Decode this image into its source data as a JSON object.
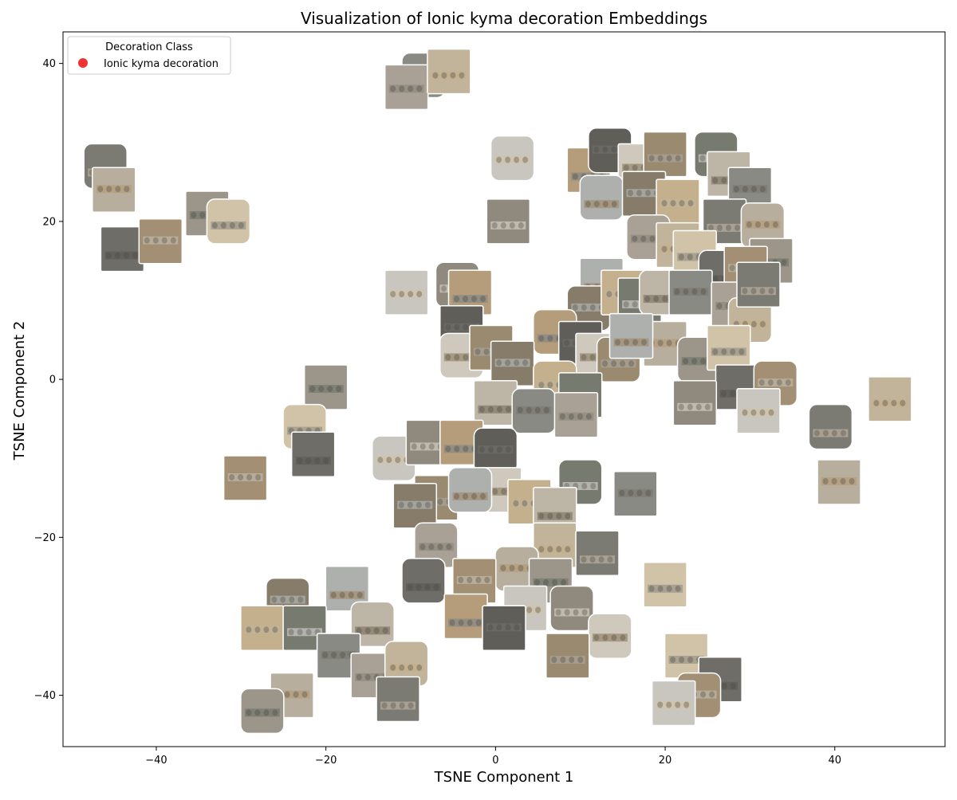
{
  "chart_data": {
    "type": "scatter",
    "title": "Visualization of Ionic kyma decoration Embeddings",
    "xlabel": "TSNE Component 1",
    "ylabel": "TSNE Component 2",
    "xlim": [
      -51,
      53
    ],
    "ylim": [
      -46.5,
      44
    ],
    "xticks": [
      -40,
      -20,
      0,
      20,
      40
    ],
    "yticks": [
      -40,
      -20,
      0,
      20,
      40
    ],
    "grid": false,
    "legend": {
      "title": "Decoration Class",
      "placement": "top-left",
      "entries": [
        {
          "label": "Ionic kyma decoration",
          "color": "#ee3333"
        }
      ]
    },
    "marker_style": "image-thumbnail",
    "series": [
      {
        "name": "Ionic kyma decoration",
        "color": "#ee3333",
        "points": [
          {
            "x": -8.5,
            "y": 38.5
          },
          {
            "x": -10.5,
            "y": 37.0
          },
          {
            "x": -5.5,
            "y": 39.0
          },
          {
            "x": -46,
            "y": 27
          },
          {
            "x": -45,
            "y": 24
          },
          {
            "x": -34,
            "y": 21
          },
          {
            "x": -31.5,
            "y": 20
          },
          {
            "x": -44,
            "y": 16.5
          },
          {
            "x": -39.5,
            "y": 17.5
          },
          {
            "x": 2,
            "y": 28
          },
          {
            "x": 1.5,
            "y": 20
          },
          {
            "x": 11,
            "y": 26.5
          },
          {
            "x": 13.5,
            "y": 29
          },
          {
            "x": 17,
            "y": 27
          },
          {
            "x": 20,
            "y": 28.5
          },
          {
            "x": 12.5,
            "y": 23
          },
          {
            "x": 17.5,
            "y": 23.5
          },
          {
            "x": 21.5,
            "y": 22.5
          },
          {
            "x": 26,
            "y": 28.5
          },
          {
            "x": 27.5,
            "y": 26
          },
          {
            "x": 30,
            "y": 24
          },
          {
            "x": 18,
            "y": 18
          },
          {
            "x": 21.5,
            "y": 17
          },
          {
            "x": 27,
            "y": 20
          },
          {
            "x": 31.5,
            "y": 19.5
          },
          {
            "x": 32.5,
            "y": 15
          },
          {
            "x": 23.5,
            "y": 16
          },
          {
            "x": 26.5,
            "y": 13.5
          },
          {
            "x": 29.5,
            "y": 14
          },
          {
            "x": -10.5,
            "y": 11
          },
          {
            "x": -4.5,
            "y": 12
          },
          {
            "x": -3,
            "y": 11
          },
          {
            "x": -4,
            "y": 6.5
          },
          {
            "x": -4,
            "y": 3
          },
          {
            "x": -0.5,
            "y": 4
          },
          {
            "x": 12.5,
            "y": 12.5
          },
          {
            "x": 11,
            "y": 9
          },
          {
            "x": 15,
            "y": 11
          },
          {
            "x": 17,
            "y": 10
          },
          {
            "x": 19.5,
            "y": 11
          },
          {
            "x": 23,
            "y": 11
          },
          {
            "x": 28,
            "y": 9.5
          },
          {
            "x": 30,
            "y": 7.5
          },
          {
            "x": 31,
            "y": 12
          },
          {
            "x": 20,
            "y": 4.5
          },
          {
            "x": 24,
            "y": 2.5
          },
          {
            "x": 27.5,
            "y": 4
          },
          {
            "x": 28.5,
            "y": -1
          },
          {
            "x": 33,
            "y": -0.5
          },
          {
            "x": 31,
            "y": -4
          },
          {
            "x": 23.5,
            "y": -3
          },
          {
            "x": 7,
            "y": 6
          },
          {
            "x": 10,
            "y": 4.5
          },
          {
            "x": 12,
            "y": 3
          },
          {
            "x": 14.5,
            "y": 2.5
          },
          {
            "x": 16,
            "y": 5.5
          },
          {
            "x": 2,
            "y": 2
          },
          {
            "x": 7,
            "y": -0.5
          },
          {
            "x": 10,
            "y": -2
          },
          {
            "x": 0,
            "y": -3
          },
          {
            "x": 4.5,
            "y": -4
          },
          {
            "x": 9.5,
            "y": -4.5
          },
          {
            "x": 46.5,
            "y": -2.5
          },
          {
            "x": 39.5,
            "y": -6
          },
          {
            "x": 40.5,
            "y": -13
          },
          {
            "x": -20,
            "y": -1
          },
          {
            "x": -22.5,
            "y": -6
          },
          {
            "x": -21.5,
            "y": -9.5
          },
          {
            "x": -29.5,
            "y": -12.5
          },
          {
            "x": -12,
            "y": -10
          },
          {
            "x": -8,
            "y": -8
          },
          {
            "x": -4,
            "y": -8
          },
          {
            "x": 0,
            "y": -9
          },
          {
            "x": 0.5,
            "y": -14
          },
          {
            "x": -7,
            "y": -15
          },
          {
            "x": -3,
            "y": -14
          },
          {
            "x": -9.5,
            "y": -16
          },
          {
            "x": 4,
            "y": -15.5
          },
          {
            "x": 10,
            "y": -13
          },
          {
            "x": 7,
            "y": -16.5
          },
          {
            "x": 16.5,
            "y": -14.5
          },
          {
            "x": -7,
            "y": -21
          },
          {
            "x": 7,
            "y": -21
          },
          {
            "x": 12,
            "y": -22
          },
          {
            "x": 2.5,
            "y": -24
          },
          {
            "x": 6.5,
            "y": -25.5
          },
          {
            "x": 20,
            "y": -26
          },
          {
            "x": -8.5,
            "y": -25.5
          },
          {
            "x": -2.5,
            "y": -25.5
          },
          {
            "x": 3.5,
            "y": -29
          },
          {
            "x": 9,
            "y": -29
          },
          {
            "x": -3.5,
            "y": -30
          },
          {
            "x": 1,
            "y": -31.5
          },
          {
            "x": 13.5,
            "y": -32.5
          },
          {
            "x": 8.5,
            "y": -35
          },
          {
            "x": -17.5,
            "y": -26.5
          },
          {
            "x": -24.5,
            "y": -28
          },
          {
            "x": -27.5,
            "y": -31.5
          },
          {
            "x": -22.5,
            "y": -31.5
          },
          {
            "x": -14.5,
            "y": -31
          },
          {
            "x": -18.5,
            "y": -35
          },
          {
            "x": -14.5,
            "y": -37.5
          },
          {
            "x": -10.5,
            "y": -36
          },
          {
            "x": -11.5,
            "y": -40.5
          },
          {
            "x": -24,
            "y": -40
          },
          {
            "x": -27.5,
            "y": -42
          },
          {
            "x": 22.5,
            "y": -35
          },
          {
            "x": 26.5,
            "y": -38
          },
          {
            "x": 24,
            "y": -40
          },
          {
            "x": 21,
            "y": -41
          }
        ]
      }
    ]
  }
}
